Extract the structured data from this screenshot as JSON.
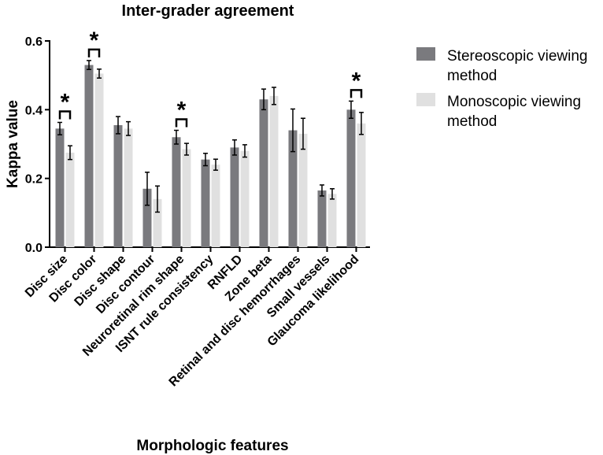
{
  "chart_data": {
    "type": "bar",
    "title": "Inter-grader agreement",
    "xlabel": "Morphologic features",
    "ylabel": "Kappa value",
    "ylim": [
      0,
      0.6
    ],
    "yticks": [
      "0.0",
      "0.2",
      "0.4",
      "0.6"
    ],
    "ytick_values": [
      0,
      0.2,
      0.4,
      0.6
    ],
    "categories": [
      "Disc size",
      "Disc color",
      "Disc shape",
      "Disc contour",
      "Neuroretinal rim shape",
      "ISNT rule consistency",
      "RNFLD",
      "Zone beta",
      "Retinal and disc hemorrhages",
      "Small vessels",
      "Glaucoma likelihood"
    ],
    "series": [
      {
        "name": "Stereoscopic viewing method",
        "color": "#7a7a7e",
        "values": [
          0.345,
          0.53,
          0.355,
          0.17,
          0.32,
          0.255,
          0.29,
          0.43,
          0.34,
          0.165,
          0.4
        ],
        "errors": [
          0.018,
          0.013,
          0.025,
          0.048,
          0.02,
          0.018,
          0.022,
          0.03,
          0.062,
          0.016,
          0.025
        ]
      },
      {
        "name": "Monoscopic viewing method",
        "color": "#e0e0e0",
        "values": [
          0.275,
          0.505,
          0.345,
          0.14,
          0.285,
          0.24,
          0.28,
          0.44,
          0.33,
          0.155,
          0.36
        ],
        "errors": [
          0.02,
          0.013,
          0.02,
          0.038,
          0.017,
          0.016,
          0.018,
          0.025,
          0.045,
          0.015,
          0.032
        ]
      }
    ],
    "significance": {
      "marker": "*",
      "categories": [
        "Disc size",
        "Disc color",
        "Neuroretinal rim shape",
        "Glaucoma likelihood"
      ]
    },
    "legend_position": "right",
    "grid": false
  }
}
